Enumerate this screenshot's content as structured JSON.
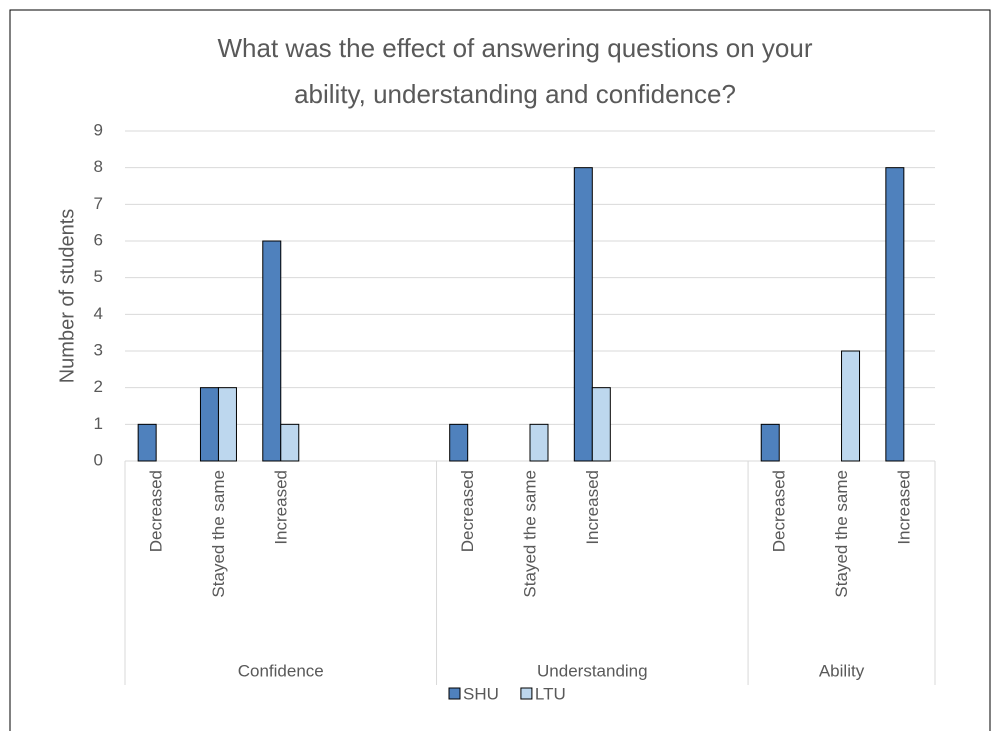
{
  "chart_data": {
    "type": "bar",
    "title": [
      "What was the effect of answering questions on your",
      "ability, understanding and confidence?"
    ],
    "ylabel": "Number of students",
    "groups": [
      {
        "name": "Confidence",
        "categories": [
          "Decreased",
          "Stayed the same",
          "Increased",
          null,
          null
        ]
      },
      {
        "name": "Understanding",
        "categories": [
          "Decreased",
          "Stayed the same",
          "Increased",
          null,
          null
        ]
      },
      {
        "name": "Ability",
        "categories": [
          "Decreased",
          "Stayed the same",
          "Increased"
        ]
      }
    ],
    "series": [
      {
        "name": "SHU",
        "color": "#4f81bd",
        "values": [
          1,
          2,
          6,
          null,
          null,
          1,
          0,
          8,
          null,
          null,
          1,
          0,
          8
        ]
      },
      {
        "name": "LTU",
        "color": "#bdd7ee",
        "values": [
          0,
          2,
          1,
          null,
          null,
          0,
          1,
          2,
          null,
          null,
          0,
          3,
          0
        ]
      }
    ],
    "ylim": [
      0,
      9
    ],
    "yticks": [
      0,
      1,
      2,
      3,
      4,
      5,
      6,
      7,
      8,
      9
    ],
    "grid": true,
    "legend": "bottom"
  }
}
